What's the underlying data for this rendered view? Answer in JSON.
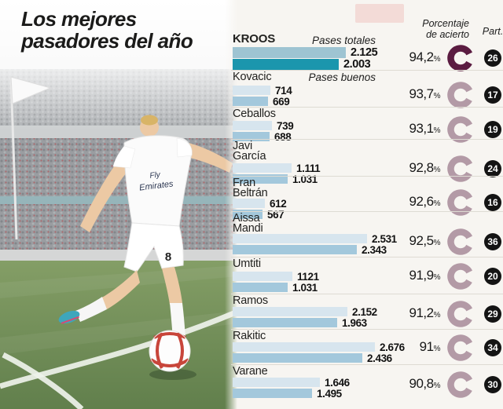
{
  "title": {
    "line1": "Los mejores",
    "line2": "pasadores del año"
  },
  "legend": {
    "totales": "Pases totales",
    "buenos": "Pases buenos"
  },
  "headers": {
    "accuracy_line1": "Porcentaje",
    "accuracy_line2": "de acierto",
    "part": "Part.",
    "percent_symbol": "%"
  },
  "colors": {
    "background": "#f7f5f1",
    "bar_totales": "#d7e5ee",
    "bar_buenos": "#a3c8dc",
    "bar_totales_highlight": "#9ec4d2",
    "bar_buenos_highlight": "#1b96ad",
    "ring_dark": "#5b1c41",
    "ring_light": "#b39aa6",
    "part_badge": "#141414"
  },
  "photo": {
    "jersey_sponsor_line1": "Fly",
    "jersey_sponsor_line2": "Emirates",
    "jersey_number": "8"
  },
  "chart_data": {
    "type": "bar",
    "orientation": "horizontal",
    "title": "Los mejores pasadores del año",
    "series": [
      "Pases totales",
      "Pases buenos"
    ],
    "legend_position": "inline-top",
    "grid": false,
    "players": [
      {
        "name": "KROOS",
        "totales": 2125,
        "buenos": 2003,
        "totales_label": "2.125",
        "buenos_label": "2.003",
        "pct": 94.2,
        "pct_label": "94,2",
        "part": 26,
        "highlight": true
      },
      {
        "name": "Kovacic",
        "totales": 714,
        "buenos": 669,
        "totales_label": "714",
        "buenos_label": "669",
        "pct": 93.7,
        "pct_label": "93,7",
        "part": 17,
        "highlight": false
      },
      {
        "name": "Ceballos",
        "totales": 739,
        "buenos": 688,
        "totales_label": "739",
        "buenos_label": "688",
        "pct": 93.1,
        "pct_label": "93,1",
        "part": 19,
        "highlight": false
      },
      {
        "name": "Javi\nGarcía",
        "totales": 1111,
        "buenos": 1031,
        "totales_label": "1.111",
        "buenos_label": "1.031",
        "pct": 92.8,
        "pct_label": "92,8",
        "part": 24,
        "highlight": false
      },
      {
        "name": "Fran\nBeltrán",
        "totales": 612,
        "buenos": 567,
        "totales_label": "612",
        "buenos_label": "567",
        "pct": 92.6,
        "pct_label": "92,6",
        "part": 16,
        "highlight": false
      },
      {
        "name": "Aissa\nMandi",
        "totales": 2531,
        "buenos": 2343,
        "totales_label": "2.531",
        "buenos_label": "2.343",
        "pct": 92.5,
        "pct_label": "92,5",
        "part": 36,
        "highlight": false
      },
      {
        "name": "Umtiti",
        "totales": 1121,
        "buenos": 1031,
        "totales_label": "1121",
        "buenos_label": "1.031",
        "pct": 91.9,
        "pct_label": "91,9",
        "part": 20,
        "highlight": false
      },
      {
        "name": "Ramos",
        "totales": 2152,
        "buenos": 1963,
        "totales_label": "2.152",
        "buenos_label": "1.963",
        "pct": 91.2,
        "pct_label": "91,2",
        "part": 29,
        "highlight": false
      },
      {
        "name": "Rakitic",
        "totales": 2676,
        "buenos": 2436,
        "totales_label": "2.676",
        "buenos_label": "2.436",
        "pct": 91.0,
        "pct_label": "91",
        "part": 34,
        "highlight": false
      },
      {
        "name": "Varane",
        "totales": 1646,
        "buenos": 1495,
        "totales_label": "1.646",
        "buenos_label": "1.495",
        "pct": 90.8,
        "pct_label": "90,8",
        "part": 30,
        "highlight": false
      }
    ]
  }
}
